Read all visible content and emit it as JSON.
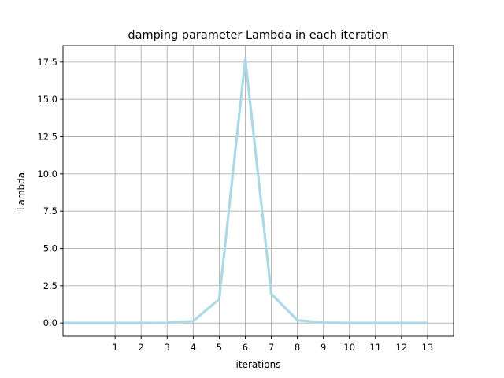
{
  "chart_data": {
    "type": "line",
    "title": "damping parameter Lambda in each iteration",
    "xlabel": "iterations",
    "ylabel": "Lambda",
    "xlim": [
      -1,
      14
    ],
    "ylim": [
      -0.89,
      18.6
    ],
    "grid": true,
    "xticks": [
      1,
      2,
      3,
      4,
      5,
      6,
      7,
      8,
      9,
      10,
      11,
      12,
      13
    ],
    "xtick_labels": [
      "1",
      "2",
      "3",
      "4",
      "5",
      "6",
      "7",
      "8",
      "9",
      "10",
      "11",
      "12",
      "13"
    ],
    "yticks": [
      0.0,
      2.5,
      5.0,
      7.5,
      10.0,
      12.5,
      15.0,
      17.5
    ],
    "ytick_labels": [
      "0.0",
      "2.5",
      "5.0",
      "7.5",
      "10.0",
      "12.5",
      "15.0",
      "17.5"
    ],
    "series": [
      {
        "color": "#add8e6",
        "x": [
          -1,
          0,
          1,
          2,
          3,
          4,
          5,
          6,
          7,
          8,
          9,
          10,
          11,
          12,
          13
        ],
        "y": [
          0.0,
          0.0,
          0.0,
          0.0,
          0.01,
          0.13,
          1.6,
          17.7,
          1.95,
          0.19,
          0.02,
          0.0,
          0.0,
          0.0,
          0.0
        ]
      }
    ]
  }
}
